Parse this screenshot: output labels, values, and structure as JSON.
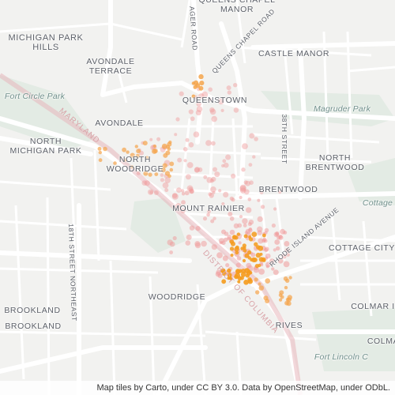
{
  "map": {
    "colors": {
      "background": "#f2f2f0",
      "road": "#ffffff",
      "road_edge": "#dcdcdc",
      "park": "#e3ebe4",
      "boundary": "#e7b7bb",
      "heat_orange": "#f5a44a",
      "heat_dense": "#f59b1c",
      "heat_pink": "#f09a9a"
    },
    "neighborhoods": {
      "michigan_park_hills": "MICHIGAN PARK\nHILLS",
      "avondale_terrace": "AVONDALE\nTERRACE",
      "avondale": "AVONDALE",
      "north_michigan_park": "NORTH\nMICHIGAN PARK",
      "north_woodridge": "NORTH\nWOODRIDGE",
      "queenstown": "QUEENSTOWN",
      "queens_chapel_manor": "QUEENS CHAPEL\nMANOR",
      "castle_manor": "CASTLE MANOR",
      "north_brentwood": "NORTH\nBRENTWOOD",
      "brentwood": "BRENTWOOD",
      "mount_rainier": "MOUNT RAINIER",
      "cottage_city": "COTTAGE CITY",
      "cottage": "Cottage",
      "woodridge": "WOODRIDGE",
      "brookland_1": "BROOKLAND",
      "brookland_2": "BROOKLAND",
      "rives": "RIVES",
      "colmar_1": "COLMAR I",
      "colmar_2": "COLMA"
    },
    "parks": {
      "fort_circle_park": "Fort Circle Park",
      "magruder_park": "Magruder Park",
      "fort_lincoln": "Fort Lincoln C"
    },
    "streets": {
      "ager_road": "AGER ROAD",
      "queens_chapel_road": "QUEENS CHAPEL ROAD",
      "street_38th": "38TH STREET",
      "rhode_island_ave": "RHODE ISLAND AVENUE",
      "street_18th_ne": "18TH STREET NORTHEAST"
    },
    "boundaries": {
      "maryland": "MARYLAND",
      "district_of_columbia": "DISTRICT OF COLUMBIA"
    },
    "attribution": {
      "prefix": "Map tiles by Carto, under CC BY 3.0. Data by OpenStreetMap, under ODbL."
    }
  }
}
